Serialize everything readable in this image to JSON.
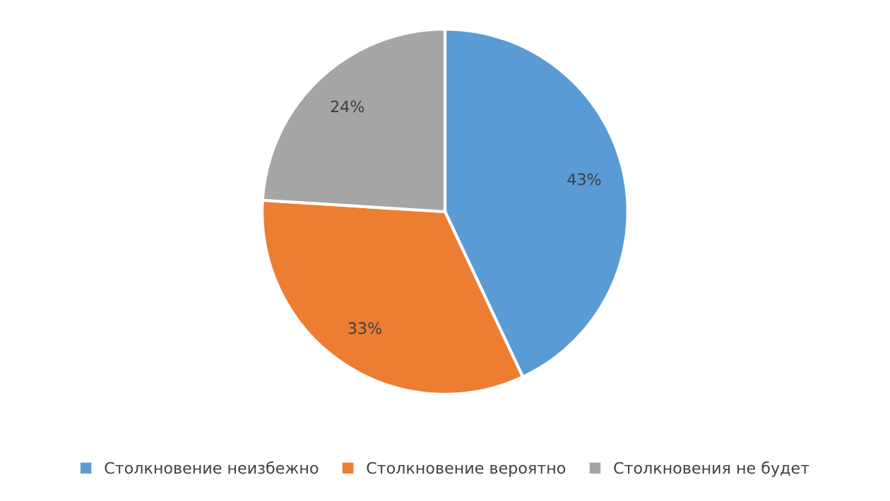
{
  "chart_data": {
    "type": "pie",
    "categories": [
      "Столкновение неизбежно",
      "Столкновение вероятно",
      "Столкновения не будет"
    ],
    "values": [
      43,
      33,
      24
    ],
    "colors": [
      "#5b9bd5",
      "#ed7d31",
      "#a5a5a5"
    ],
    "value_labels": [
      "43%",
      "33%",
      "24%"
    ],
    "legend": "bottom"
  }
}
